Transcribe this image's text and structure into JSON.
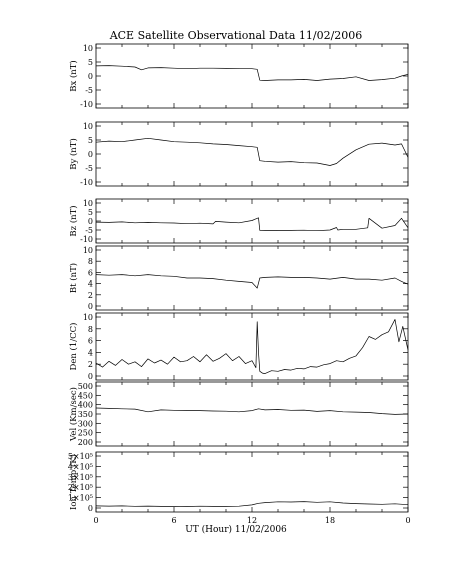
{
  "chart_data": [
    {
      "type": "line",
      "title": "ACE Satellite Observational Data   11/02/2006",
      "ylabel": "Bx (nT)",
      "ylim": [
        -10,
        10
      ],
      "yticks": [
        "10",
        "5",
        "0",
        "-5",
        "-10"
      ],
      "yticksAt": [
        10,
        5,
        0,
        -5,
        -10
      ],
      "xlim": [
        0,
        24
      ],
      "series": [
        {
          "x": [
            0,
            1,
            2,
            3,
            3.5,
            4,
            5,
            6,
            7,
            8,
            9,
            10,
            11,
            12,
            12.4,
            12.6,
            13,
            14,
            15,
            16,
            17,
            18,
            19,
            20,
            21,
            22,
            23,
            23.5,
            24
          ],
          "y": [
            3.6,
            3.7,
            3.5,
            3.2,
            2.2,
            2.9,
            3,
            2.8,
            2.6,
            2.8,
            2.8,
            2.7,
            2.6,
            2.6,
            2.4,
            -1.5,
            -1.6,
            -1.4,
            -1.4,
            -1.2,
            -1.6,
            -1.1,
            -0.9,
            -0.3,
            -1.6,
            -1.3,
            -0.8,
            0,
            0.6
          ]
        }
      ]
    },
    {
      "type": "line",
      "ylabel": "By (nT)",
      "ylim": [
        -10,
        10
      ],
      "yticks": [
        "10",
        "5",
        "0",
        "-5",
        "-10"
      ],
      "yticksAt": [
        10,
        5,
        0,
        -5,
        -10
      ],
      "xlim": [
        0,
        24
      ],
      "series": [
        {
          "x": [
            0,
            1,
            2,
            3,
            4,
            5,
            6,
            7,
            8,
            9,
            10,
            11,
            12,
            12.4,
            12.6,
            13,
            14,
            15,
            16,
            17,
            18,
            18.5,
            19,
            20,
            21,
            22,
            23,
            23.5,
            24
          ],
          "y": [
            4.2,
            4.6,
            4.4,
            5,
            5.6,
            5,
            4.4,
            4.2,
            4,
            3.6,
            3.4,
            3,
            2.6,
            2.4,
            -2.4,
            -2.6,
            -2.9,
            -2.7,
            -3.1,
            -3.2,
            -4.1,
            -3.4,
            -1.5,
            1.5,
            3.5,
            3.9,
            3.2,
            3.6,
            -1.2
          ]
        }
      ]
    },
    {
      "type": "line",
      "ylabel": "Bz (nT)",
      "ylim": [
        -10,
        10
      ],
      "yticks": [
        "10",
        "5",
        "0",
        "-5",
        "-10"
      ],
      "yticksAt": [
        10,
        5,
        0,
        -5,
        -10
      ],
      "xlim": [
        0,
        24
      ],
      "series": [
        {
          "x": [
            0,
            1,
            2,
            3,
            4,
            5,
            6,
            7,
            8,
            9,
            9.2,
            10,
            11,
            12,
            12.5,
            12.6,
            13,
            14,
            15,
            16,
            17,
            18,
            18.5,
            18.6,
            19,
            20,
            20.9,
            21,
            22,
            23,
            23.5,
            24
          ],
          "y": [
            -0.6,
            -0.8,
            -0.5,
            -1,
            -0.8,
            -1,
            -1.1,
            -1.5,
            -1.2,
            -1.6,
            -0.2,
            -0.6,
            -1,
            0.3,
            1.8,
            -5.2,
            -5.3,
            -5.2,
            -5.2,
            -5.1,
            -5.4,
            -5,
            -3.6,
            -5,
            -4.6,
            -4.6,
            -3.8,
            1.5,
            -4,
            -2.5,
            1.5,
            -3.8
          ]
        }
      ]
    },
    {
      "type": "line",
      "ylabel": "Bt (nT)",
      "ylim": [
        0,
        10
      ],
      "yticks": [
        "10",
        "8",
        "6",
        "4",
        "2",
        "0"
      ],
      "yticksAt": [
        10,
        8,
        6,
        4,
        2,
        0
      ],
      "xlim": [
        0,
        24
      ],
      "series": [
        {
          "x": [
            0,
            1,
            2,
            3,
            4,
            5,
            6,
            7,
            8,
            9,
            10,
            11,
            12,
            12.4,
            12.6,
            13,
            14,
            15,
            16,
            17,
            18,
            19,
            20,
            21,
            22,
            23,
            23.5,
            24
          ],
          "y": [
            5.6,
            5.5,
            5.6,
            5.4,
            5.6,
            5.4,
            5.3,
            5,
            5,
            4.9,
            4.6,
            4.4,
            4.2,
            3.2,
            5,
            5.1,
            5.2,
            5.1,
            5.1,
            5,
            4.8,
            5.1,
            4.8,
            4.8,
            4.6,
            5,
            4.4,
            3.9
          ]
        }
      ]
    },
    {
      "type": "line",
      "ylabel": "Den (1/CC)",
      "ylim": [
        0,
        10
      ],
      "yticks": [
        "10",
        "8",
        "6",
        "4",
        "2",
        "0"
      ],
      "yticksAt": [
        10,
        8,
        6,
        4,
        2,
        0
      ],
      "xlim": [
        0,
        24
      ],
      "series": [
        {
          "x": [
            0,
            0.5,
            1,
            1.5,
            2,
            2.5,
            3,
            3.5,
            4,
            4.5,
            5,
            5.5,
            6,
            6.5,
            7,
            7.5,
            8,
            8.5,
            9,
            9.5,
            10,
            10.5,
            11,
            11.5,
            12,
            12.3,
            12.4,
            12.5,
            12.6,
            12.8,
            13,
            13.5,
            14,
            14.5,
            15,
            15.5,
            16,
            16.5,
            17,
            17.5,
            18,
            18.5,
            19,
            19.5,
            20,
            20.5,
            21,
            21.5,
            22,
            22.5,
            23,
            23.3,
            23.6,
            24
          ],
          "y": [
            2.2,
            1.5,
            2.5,
            1.8,
            2.8,
            2,
            2.4,
            1.6,
            2.9,
            2.2,
            2.7,
            2,
            3.2,
            2.4,
            2.6,
            3.3,
            2.4,
            3.6,
            2.5,
            3,
            3.8,
            2.6,
            3.3,
            2.1,
            2.6,
            1.4,
            9.2,
            4,
            0.8,
            0.5,
            0.4,
            0.9,
            0.8,
            1.1,
            1,
            1.3,
            1.2,
            1.6,
            1.5,
            1.9,
            2.1,
            2.6,
            2.4,
            3,
            3.4,
            4.8,
            6.7,
            6.2,
            7,
            7.5,
            9.6,
            5.8,
            8.4,
            4.4
          ]
        }
      ]
    },
    {
      "type": "line",
      "ylabel": "Vel (Km/sec)",
      "ylim": [
        200,
        500
      ],
      "yticks": [
        "500",
        "450",
        "400",
        "350",
        "300",
        "250",
        "200"
      ],
      "yticksAt": [
        500,
        450,
        400,
        350,
        300,
        250,
        200
      ],
      "xlim": [
        0,
        24
      ],
      "series": [
        {
          "x": [
            0,
            1,
            2,
            3,
            4,
            5,
            6,
            7,
            8,
            9,
            10,
            11,
            12,
            12.5,
            13,
            14,
            15,
            16,
            17,
            18,
            19,
            20,
            21,
            22,
            23,
            24
          ],
          "y": [
            382,
            380,
            378,
            376,
            362,
            372,
            370,
            368,
            368,
            366,
            365,
            362,
            368,
            378,
            372,
            374,
            370,
            371,
            364,
            368,
            362,
            360,
            358,
            352,
            348,
            350
          ]
        }
      ]
    },
    {
      "type": "line",
      "ylabel": "Ion Temp (K)",
      "ylim": [
        0,
        500000
      ],
      "yticks": [
        "5×10⁵",
        "4×10⁵",
        "3×10⁵",
        "2×10⁵",
        "1×10⁵",
        "0"
      ],
      "yticksAt": [
        500000,
        400000,
        300000,
        200000,
        100000,
        0
      ],
      "xlim": [
        0,
        24
      ],
      "xticks": [
        "0",
        "6",
        "12",
        "18",
        "0"
      ],
      "xticksAt": [
        0,
        6,
        12,
        18,
        24
      ],
      "xlabel": "UT (Hour)   11/02/2006",
      "series": [
        {
          "x": [
            0,
            1,
            2,
            3,
            4,
            5,
            6,
            7,
            8,
            9,
            10,
            11,
            12,
            12.5,
            13,
            14,
            15,
            16,
            17,
            18,
            19,
            20,
            21,
            22,
            23,
            24
          ],
          "y": [
            20000,
            18000,
            20000,
            16000,
            18000,
            15000,
            16000,
            14000,
            17000,
            15000,
            15000,
            17000,
            30000,
            45000,
            52000,
            60000,
            58000,
            62000,
            55000,
            60000,
            48000,
            42000,
            38000,
            36000,
            40000,
            32000
          ]
        }
      ]
    }
  ]
}
